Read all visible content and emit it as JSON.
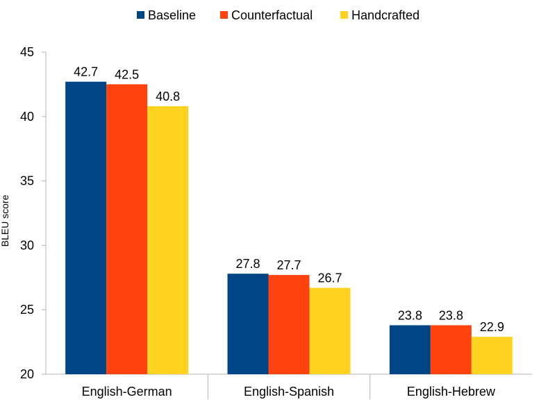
{
  "chart_data": {
    "type": "bar",
    "title": "",
    "xlabel": "",
    "ylabel": "BLEU score",
    "ylim": [
      20,
      45
    ],
    "yticks": [
      "20",
      "25",
      "30",
      "35",
      "40",
      "45"
    ],
    "categories": [
      "English-German",
      "English-Spanish",
      "English-Hebrew"
    ],
    "series": [
      {
        "name": "Baseline",
        "color": "#004586",
        "values": [
          42.7,
          27.8,
          23.8
        ],
        "labels": [
          "42.7",
          "27.8",
          "23.8"
        ]
      },
      {
        "name": "Counterfactual",
        "color": "#ff420e",
        "values": [
          42.5,
          27.7,
          23.8
        ],
        "labels": [
          "42.5",
          "27.7",
          "23.8"
        ]
      },
      {
        "name": "Handcrafted",
        "color": "#ffd320",
        "values": [
          40.8,
          26.7,
          22.9
        ],
        "labels": [
          "40.8",
          "26.7",
          "22.9"
        ]
      }
    ],
    "legend_position": "top",
    "grid": false
  }
}
